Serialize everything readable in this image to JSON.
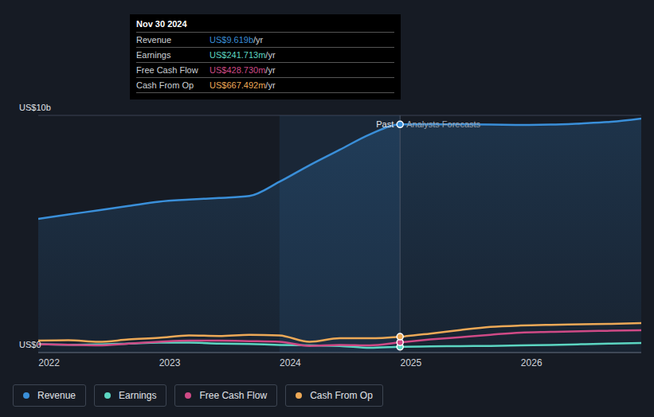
{
  "chart_data": {
    "type": "line",
    "x": [
      2021.91,
      2022.16,
      2022.41,
      2022.66,
      2022.91,
      2023.16,
      2023.41,
      2023.66,
      2023.91,
      2024.16,
      2024.41,
      2024.66,
      2024.91,
      2025.16,
      2025.41,
      2025.66,
      2025.91,
      2026.16,
      2026.41,
      2026.66,
      2026.91
    ],
    "series": [
      {
        "name": "Revenue",
        "color": "#3a8fd9",
        "type": "area",
        "values": [
          5.64,
          5.82,
          6.0,
          6.18,
          6.36,
          6.45,
          6.52,
          6.6,
          7.2,
          7.9,
          8.55,
          9.2,
          9.619,
          9.62,
          9.62,
          9.61,
          9.6,
          9.61,
          9.66,
          9.73,
          9.87
        ]
      },
      {
        "name": "Earnings",
        "color": "#5cd6c2",
        "type": "line",
        "values": [
          0.36,
          0.33,
          0.34,
          0.38,
          0.42,
          0.42,
          0.38,
          0.36,
          0.32,
          0.3,
          0.28,
          0.2,
          0.242,
          0.26,
          0.27,
          0.28,
          0.3,
          0.32,
          0.35,
          0.38,
          0.4
        ]
      },
      {
        "name": "Free Cash Flow",
        "color": "#cf4a86",
        "type": "line",
        "values": [
          0.35,
          0.33,
          0.3,
          0.38,
          0.45,
          0.5,
          0.5,
          0.48,
          0.45,
          0.28,
          0.32,
          0.3,
          0.429,
          0.55,
          0.65,
          0.75,
          0.84,
          0.87,
          0.9,
          0.92,
          0.94
        ]
      },
      {
        "name": "Cash From Op",
        "color": "#eda957",
        "type": "line",
        "values": [
          0.5,
          0.52,
          0.45,
          0.55,
          0.62,
          0.72,
          0.7,
          0.75,
          0.72,
          0.45,
          0.6,
          0.6,
          0.667,
          0.8,
          0.95,
          1.08,
          1.14,
          1.17,
          1.19,
          1.21,
          1.24
        ]
      }
    ],
    "xlim": [
      2021.91,
      2026.91
    ],
    "xticks": [
      2022,
      2023,
      2024,
      2025,
      2026
    ],
    "ylim": [
      0,
      10
    ],
    "yticks": [
      {
        "value": 0,
        "label": "US$0"
      },
      {
        "value": 10,
        "label": "US$10b"
      }
    ],
    "grid": true,
    "legend": "bottom",
    "annotations": [
      {
        "text": "Past",
        "x": 2024.91
      },
      {
        "text": "Analysts Forecasts",
        "x": 2024.91
      }
    ],
    "tooltip": {
      "title": "Nov 30 2024",
      "rows": [
        {
          "label": "Revenue",
          "value": "US$9.619b",
          "suffix": " /yr",
          "color": "#3a8fd9"
        },
        {
          "label": "Earnings",
          "value": "US$241.713m",
          "suffix": " /yr",
          "color": "#5cd6c2"
        },
        {
          "label": "Free Cash Flow",
          "value": "US$428.730m",
          "suffix": " /yr",
          "color": "#cf4a86"
        },
        {
          "label": "Cash From Op",
          "value": "US$667.492m",
          "suffix": " /yr",
          "color": "#eda957"
        }
      ]
    }
  }
}
